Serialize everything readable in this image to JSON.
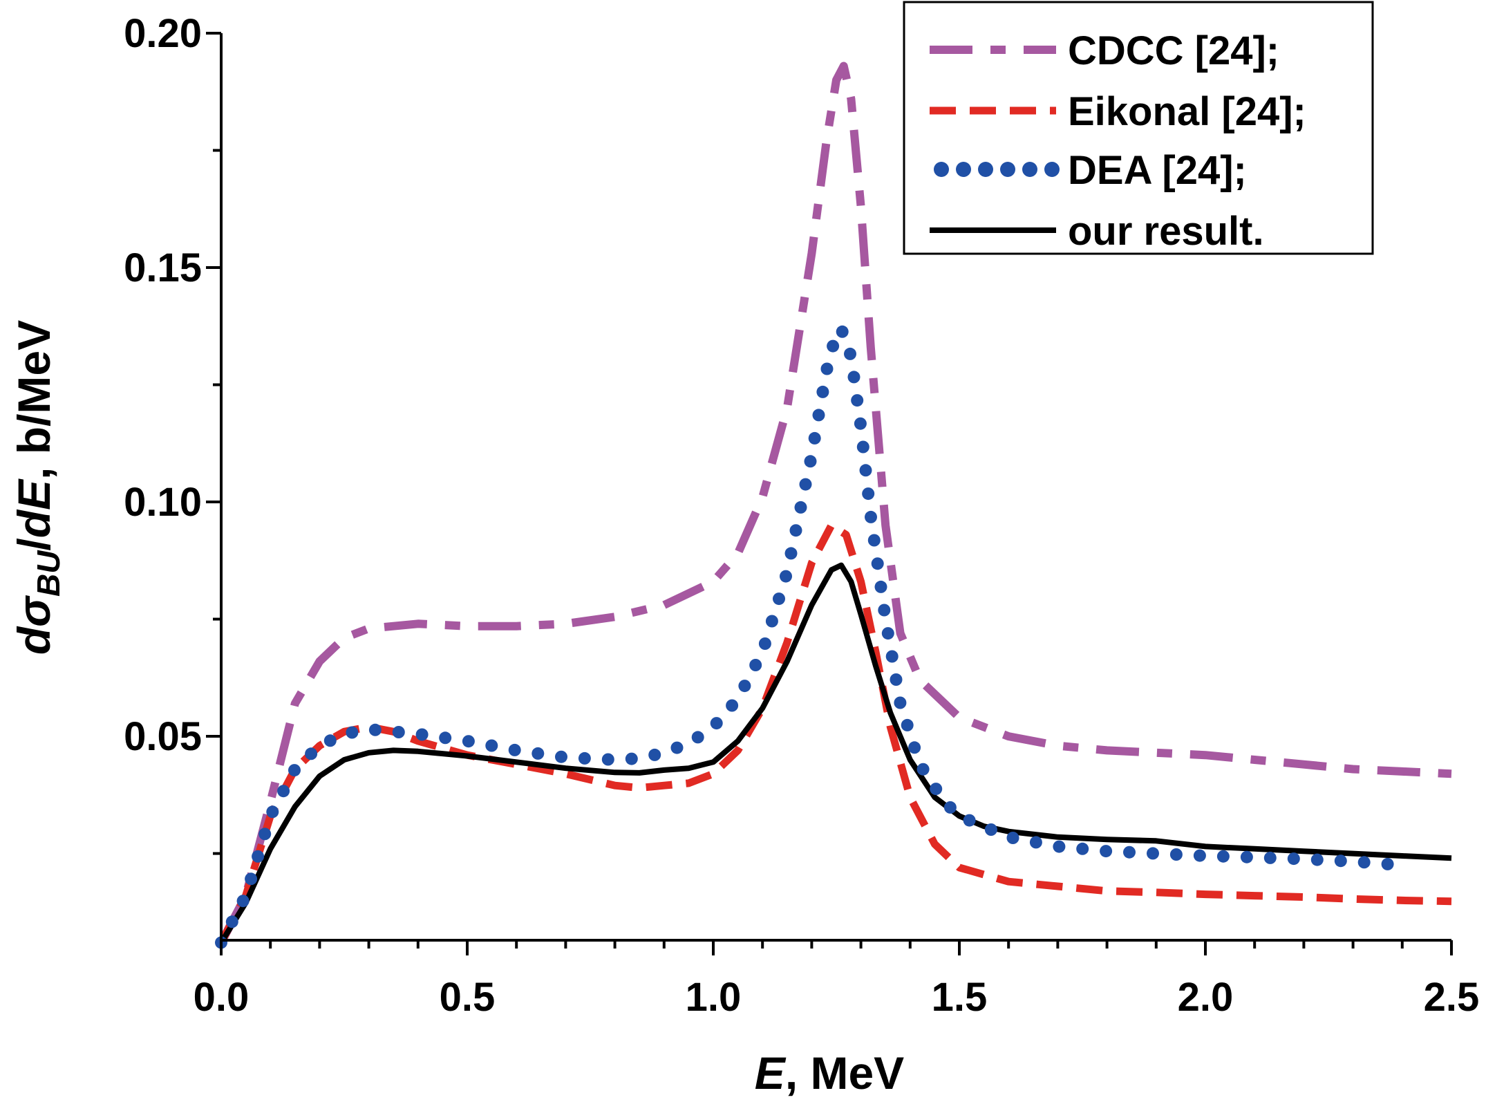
{
  "chart_data": {
    "type": "line",
    "title": "",
    "xlabel": {
      "italic": "E",
      "rest": ", MeV"
    },
    "ylabel": {
      "d1": "d",
      "sigma": "σ",
      "sub": "BU",
      "slash": "/",
      "d2": "d",
      "E": "E",
      "rest": ", b/MeV"
    },
    "xlim": [
      0,
      2.5
    ],
    "ylim": [
      0.0065,
      0.2
    ],
    "xticks": [
      "0.0",
      "0.5",
      "1.0",
      "1.5",
      "2.0",
      "2.5"
    ],
    "yticks": [
      "0.05",
      "0.10",
      "0.15",
      "0.20"
    ],
    "grid": false,
    "legend_position": "top-right",
    "series": [
      {
        "name": "CDCC [24];",
        "color": "#a658a0",
        "style": "dashdot",
        "points": [
          [
            0.0,
            0.006
          ],
          [
            0.05,
            0.016
          ],
          [
            0.1,
            0.036
          ],
          [
            0.15,
            0.057
          ],
          [
            0.2,
            0.066
          ],
          [
            0.25,
            0.071
          ],
          [
            0.3,
            0.073
          ],
          [
            0.4,
            0.074
          ],
          [
            0.5,
            0.0735
          ],
          [
            0.6,
            0.0735
          ],
          [
            0.7,
            0.074
          ],
          [
            0.8,
            0.0755
          ],
          [
            0.9,
            0.078
          ],
          [
            1.0,
            0.083
          ],
          [
            1.05,
            0.089
          ],
          [
            1.1,
            0.101
          ],
          [
            1.15,
            0.12
          ],
          [
            1.2,
            0.153
          ],
          [
            1.23,
            0.177
          ],
          [
            1.25,
            0.19
          ],
          [
            1.265,
            0.193
          ],
          [
            1.28,
            0.186
          ],
          [
            1.3,
            0.163
          ],
          [
            1.32,
            0.133
          ],
          [
            1.35,
            0.095
          ],
          [
            1.38,
            0.072
          ],
          [
            1.42,
            0.062
          ],
          [
            1.5,
            0.054
          ],
          [
            1.6,
            0.05
          ],
          [
            1.7,
            0.048
          ],
          [
            1.8,
            0.047
          ],
          [
            1.9,
            0.0465
          ],
          [
            2.0,
            0.046
          ],
          [
            2.1,
            0.045
          ],
          [
            2.2,
            0.044
          ],
          [
            2.3,
            0.043
          ],
          [
            2.4,
            0.0425
          ],
          [
            2.5,
            0.042
          ]
        ]
      },
      {
        "name": "Eikonal [24];",
        "color": "#e12a23",
        "style": "dashed",
        "points": [
          [
            0.0,
            0.006
          ],
          [
            0.05,
            0.016
          ],
          [
            0.1,
            0.033
          ],
          [
            0.15,
            0.043
          ],
          [
            0.2,
            0.048
          ],
          [
            0.25,
            0.051
          ],
          [
            0.3,
            0.052
          ],
          [
            0.35,
            0.051
          ],
          [
            0.4,
            0.049
          ],
          [
            0.5,
            0.046
          ],
          [
            0.6,
            0.044
          ],
          [
            0.7,
            0.042
          ],
          [
            0.8,
            0.0395
          ],
          [
            0.85,
            0.039
          ],
          [
            0.9,
            0.0395
          ],
          [
            0.95,
            0.04
          ],
          [
            1.0,
            0.042
          ],
          [
            1.05,
            0.047
          ],
          [
            1.1,
            0.056
          ],
          [
            1.15,
            0.07
          ],
          [
            1.2,
            0.087
          ],
          [
            1.24,
            0.095
          ],
          [
            1.27,
            0.093
          ],
          [
            1.3,
            0.083
          ],
          [
            1.33,
            0.068
          ],
          [
            1.36,
            0.052
          ],
          [
            1.4,
            0.037
          ],
          [
            1.45,
            0.027
          ],
          [
            1.5,
            0.022
          ],
          [
            1.6,
            0.019
          ],
          [
            1.7,
            0.018
          ],
          [
            1.8,
            0.017
          ],
          [
            1.9,
            0.0167
          ],
          [
            2.0,
            0.0163
          ],
          [
            2.1,
            0.016
          ],
          [
            2.2,
            0.0157
          ],
          [
            2.3,
            0.0153
          ],
          [
            2.4,
            0.015
          ],
          [
            2.5,
            0.0148
          ]
        ]
      },
      {
        "name": "DEA [24];",
        "color": "#2050a6",
        "style": "dotted",
        "points": [
          [
            0.0,
            0.006
          ],
          [
            0.05,
            0.016
          ],
          [
            0.1,
            0.033
          ],
          [
            0.15,
            0.043
          ],
          [
            0.2,
            0.048
          ],
          [
            0.25,
            0.0505
          ],
          [
            0.3,
            0.0515
          ],
          [
            0.35,
            0.051
          ],
          [
            0.4,
            0.0505
          ],
          [
            0.5,
            0.049
          ],
          [
            0.6,
            0.047
          ],
          [
            0.7,
            0.0455
          ],
          [
            0.8,
            0.045
          ],
          [
            0.85,
            0.0453
          ],
          [
            0.9,
            0.0465
          ],
          [
            0.95,
            0.0485
          ],
          [
            1.0,
            0.052
          ],
          [
            1.05,
            0.058
          ],
          [
            1.1,
            0.068
          ],
          [
            1.15,
            0.085
          ],
          [
            1.2,
            0.11
          ],
          [
            1.23,
            0.128
          ],
          [
            1.25,
            0.136
          ],
          [
            1.26,
            0.137
          ],
          [
            1.28,
            0.131
          ],
          [
            1.3,
            0.116
          ],
          [
            1.32,
            0.097
          ],
          [
            1.35,
            0.075
          ],
          [
            1.38,
            0.057
          ],
          [
            1.42,
            0.044
          ],
          [
            1.47,
            0.036
          ],
          [
            1.5,
            0.033
          ],
          [
            1.6,
            0.0285
          ],
          [
            1.7,
            0.0265
          ],
          [
            1.8,
            0.0255
          ],
          [
            1.9,
            0.025
          ],
          [
            2.0,
            0.0245
          ],
          [
            2.1,
            0.0242
          ],
          [
            2.2,
            0.0238
          ],
          [
            2.3,
            0.0233
          ],
          [
            2.4,
            0.0225
          ]
        ]
      },
      {
        "name": "our result.",
        "color": "#000000",
        "style": "solid",
        "points": [
          [
            0.0,
            0.006
          ],
          [
            0.05,
            0.0145
          ],
          [
            0.1,
            0.026
          ],
          [
            0.15,
            0.035
          ],
          [
            0.2,
            0.0415
          ],
          [
            0.25,
            0.045
          ],
          [
            0.3,
            0.0465
          ],
          [
            0.35,
            0.047
          ],
          [
            0.4,
            0.0468
          ],
          [
            0.5,
            0.0458
          ],
          [
            0.6,
            0.0445
          ],
          [
            0.7,
            0.0432
          ],
          [
            0.8,
            0.0423
          ],
          [
            0.85,
            0.0422
          ],
          [
            0.9,
            0.0428
          ],
          [
            0.95,
            0.0432
          ],
          [
            1.0,
            0.0445
          ],
          [
            1.05,
            0.049
          ],
          [
            1.1,
            0.056
          ],
          [
            1.15,
            0.066
          ],
          [
            1.2,
            0.078
          ],
          [
            1.24,
            0.0855
          ],
          [
            1.26,
            0.0865
          ],
          [
            1.28,
            0.083
          ],
          [
            1.3,
            0.076
          ],
          [
            1.33,
            0.065
          ],
          [
            1.36,
            0.055
          ],
          [
            1.4,
            0.045
          ],
          [
            1.45,
            0.037
          ],
          [
            1.5,
            0.033
          ],
          [
            1.55,
            0.0308
          ],
          [
            1.6,
            0.0297
          ],
          [
            1.7,
            0.0285
          ],
          [
            1.8,
            0.028
          ],
          [
            1.9,
            0.0277
          ],
          [
            2.0,
            0.0265
          ],
          [
            2.1,
            0.026
          ],
          [
            2.2,
            0.0255
          ],
          [
            2.3,
            0.025
          ],
          [
            2.4,
            0.0245
          ],
          [
            2.5,
            0.024
          ]
        ]
      }
    ]
  }
}
